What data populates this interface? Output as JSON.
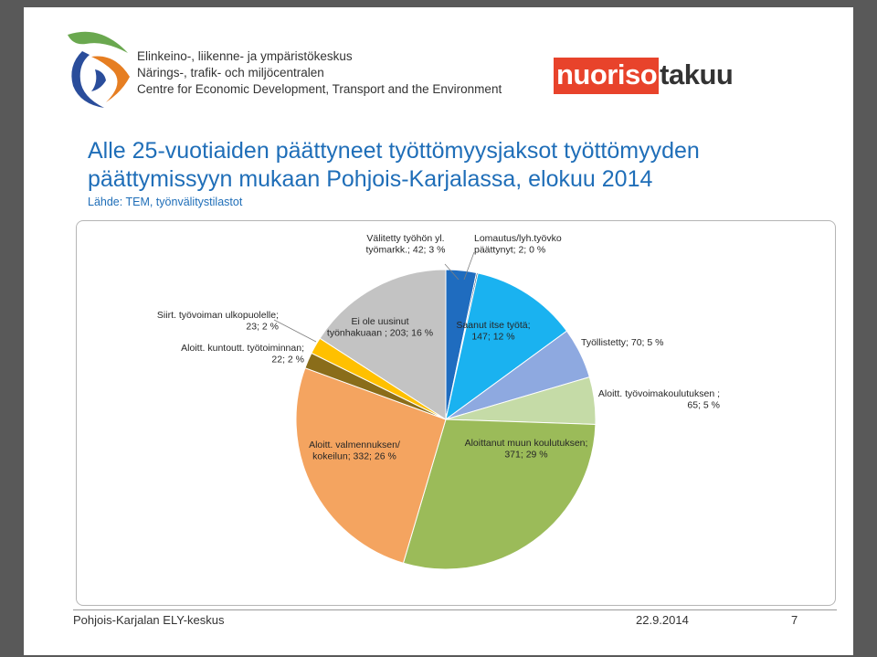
{
  "header": {
    "org_lines": [
      "Elinkeino-, liikenne- ja ympäristökeskus",
      "Närings-, trafik- och miljöcentralen",
      "Centre for Economic Development, Transport and the Environment"
    ],
    "brand": {
      "part_a": "nuoriso",
      "part_b": "takuu"
    }
  },
  "footer": {
    "left": "Pohjois-Karjalan ELY-keskus",
    "date": "22.9.2014",
    "page": "7"
  },
  "colors": {
    "title": "#1f6eb8",
    "brand_red": "#e8432b"
  },
  "chart_data": {
    "type": "pie",
    "title_lines": [
      "Alle 25-vuotiaiden päättyneet työttömyysjaksot työttömyyden",
      "päättymissyyn mukaan Pohjois-Karjalassa, elokuu 2014"
    ],
    "subtitle": "Lähde: TEM, työnvälitystilastot",
    "start_angle_deg": 0,
    "direction": "clockwise",
    "slices": [
      {
        "label_lines": [
          "Välitetty työhön yl.",
          "työmarkk.; 42; 3 %"
        ],
        "value": 42,
        "percent": 3,
        "color": "#1f6cbf"
      },
      {
        "label_lines": [
          "Lomautus/lyh.työvko",
          "päättynyt; 2; 0 %"
        ],
        "value": 2,
        "percent": 0,
        "color": "#17375e"
      },
      {
        "label_lines": [
          "Saanut itse työtä;",
          "147; 12 %"
        ],
        "value": 147,
        "percent": 12,
        "color": "#1ab2f0"
      },
      {
        "label_lines": [
          "Työllistetty; 70; 5 %"
        ],
        "value": 70,
        "percent": 5,
        "color": "#8ea9e0"
      },
      {
        "label_lines": [
          "Aloitt. työvoimakoulutuksen ;",
          "65; 5 %"
        ],
        "value": 65,
        "percent": 5,
        "color": "#c5dba7"
      },
      {
        "label_lines": [
          "Aloittanut muun koulutuksen;",
          "371; 29 %"
        ],
        "value": 371,
        "percent": 29,
        "color": "#9bbb59"
      },
      {
        "label_lines": [
          "Aloitt. valmennuksen/",
          "kokeilun; 332; 26 %"
        ],
        "value": 332,
        "percent": 26,
        "color": "#f4a460"
      },
      {
        "label_lines": [
          "Aloitt. kuntoutt. työtoiminnan;",
          "22; 2 %"
        ],
        "value": 22,
        "percent": 2,
        "color": "#8a6d1a"
      },
      {
        "label_lines": [
          "Siirt. työvoiman ulkopuolelle;",
          "23; 2 %"
        ],
        "value": 23,
        "percent": 2,
        "color": "#ffc000"
      },
      {
        "label_lines": [
          "Ei ole uusinut",
          "työnhakuaan ; 203; 16 %"
        ],
        "value": 203,
        "percent": 16,
        "color": "#c3c3c3"
      }
    ]
  }
}
